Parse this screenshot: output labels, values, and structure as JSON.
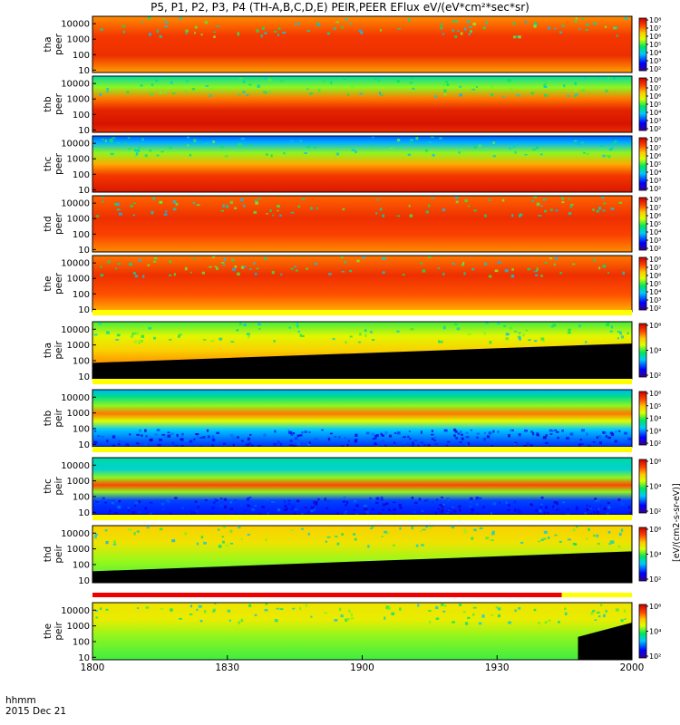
{
  "title": "P5, P1, P2, P3, P4 (TH-A,B,C,D,E) PEIR,PEER EFlux eV/(eV*cm²*sec*sr)",
  "time_label": "hhmm",
  "date_label": "2015 Dec 21",
  "units_label": "[eV/(cm2-s-sr-eV)]",
  "colors": {
    "status_yellow": "#ffff00",
    "status_red": "#ee0000"
  },
  "chart_data": {
    "type": "heatmap",
    "x_ticks": [
      "1800",
      "1830",
      "1900",
      "1930",
      "2000"
    ],
    "x_range": [
      "18:00",
      "20:00"
    ],
    "y_scale": "log",
    "colormap": "rainbow",
    "panels": [
      {
        "id": "tha-peer",
        "name1": "tha",
        "name2": "peer",
        "ylim": [
          7,
          30000
        ],
        "yticks": [
          "10",
          "100",
          "1000",
          "10000"
        ],
        "cb_ticks": [
          "10²",
          "10³",
          "10⁴",
          "10⁵",
          "10⁶",
          "10⁷",
          "10⁸"
        ],
        "cb_min": 2,
        "cb_max": 8
      },
      {
        "id": "thb-peer",
        "name1": "thb",
        "name2": "peer",
        "ylim": [
          7,
          30000
        ],
        "yticks": [
          "10",
          "100",
          "1000",
          "10000"
        ],
        "cb_ticks": [
          "10²",
          "10³",
          "10⁴",
          "10⁵",
          "10⁶",
          "10⁷",
          "10⁸"
        ],
        "cb_min": 2,
        "cb_max": 8
      },
      {
        "id": "thc-peer",
        "name1": "thc",
        "name2": "peer",
        "ylim": [
          7,
          30000
        ],
        "yticks": [
          "10",
          "100",
          "1000",
          "10000"
        ],
        "cb_ticks": [
          "10²",
          "10³",
          "10⁴",
          "10⁵",
          "10⁶",
          "10⁷",
          "10⁸"
        ],
        "cb_min": 2,
        "cb_max": 8
      },
      {
        "id": "thd-peer",
        "name1": "thd",
        "name2": "peer",
        "ylim": [
          7,
          30000
        ],
        "yticks": [
          "10",
          "100",
          "1000",
          "10000"
        ],
        "cb_ticks": [
          "10²",
          "10³",
          "10⁴",
          "10⁵",
          "10⁶",
          "10⁷",
          "10⁸"
        ],
        "cb_min": 2,
        "cb_max": 8
      },
      {
        "id": "the-peer",
        "name1": "the",
        "name2": "peer",
        "ylim": [
          7,
          30000
        ],
        "yticks": [
          "10",
          "100",
          "1000",
          "10000"
        ],
        "cb_ticks": [
          "10²",
          "10³",
          "10⁴",
          "10⁵",
          "10⁶",
          "10⁷",
          "10⁸"
        ],
        "cb_min": 2,
        "cb_max": 8
      },
      {
        "id": "tha-peir",
        "name1": "tha",
        "name2": "peir",
        "ylim": [
          7,
          30000
        ],
        "yticks": [
          "10",
          "100",
          "1000",
          "10000"
        ],
        "cb_ticks": [
          "10²",
          "10⁴",
          "10⁶"
        ],
        "cb_min": 2,
        "cb_max": 7
      },
      {
        "id": "thb-peir",
        "name1": "thb",
        "name2": "peir",
        "ylim": [
          7,
          30000
        ],
        "yticks": [
          "10",
          "100",
          "1000",
          "10000"
        ],
        "cb_ticks": [
          "10²",
          "10³",
          "10⁴",
          "10⁵",
          "10⁶"
        ],
        "cb_min": 2,
        "cb_max": 6.5
      },
      {
        "id": "thc-peir",
        "name1": "thc",
        "name2": "peir",
        "ylim": [
          7,
          30000
        ],
        "yticks": [
          "10",
          "100",
          "1000",
          "10000"
        ],
        "cb_ticks": [
          "10²",
          "10⁴",
          "10⁶"
        ],
        "cb_min": 2,
        "cb_max": 7
      },
      {
        "id": "thd-peir",
        "name1": "thd",
        "name2": "peir",
        "ylim": [
          7,
          30000
        ],
        "yticks": [
          "10",
          "100",
          "1000",
          "10000"
        ],
        "cb_ticks": [
          "10²",
          "10⁴",
          "10⁶"
        ],
        "cb_min": 2,
        "cb_max": 7
      },
      {
        "id": "the-peir",
        "name1": "the",
        "name2": "peir",
        "ylim": [
          7,
          30000
        ],
        "yticks": [
          "10",
          "100",
          "1000",
          "10000"
        ],
        "cb_ticks": [
          "10²",
          "10⁴",
          "10⁶"
        ],
        "cb_min": 2,
        "cb_max": 7
      }
    ]
  }
}
